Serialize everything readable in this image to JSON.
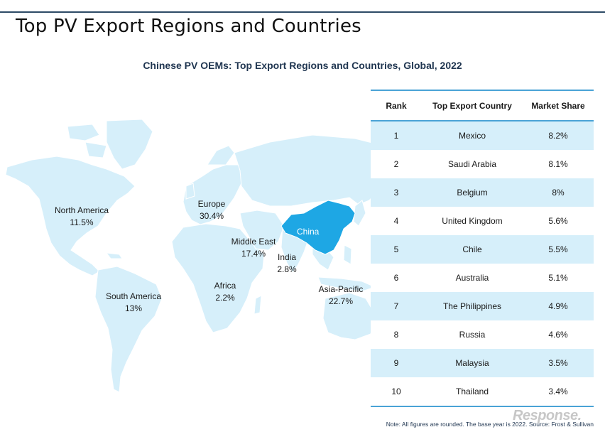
{
  "page_title": "Top PV Export Regions and Countries",
  "note": "Note: All figures are rounded. The base year is 2022. Source: Frost & Sullivan",
  "watermark": "Response.",
  "colors": {
    "land": "#d6effa",
    "highlight": "#1ea7e4",
    "rule": "#2d4a66",
    "table_accent": "#4aa3d6"
  },
  "chart_data": [
    {
      "type": "map",
      "title": "Chinese PV OEMs: Top Export Regions and Countries, Global, 2022",
      "highlighted_country": "China",
      "regions": [
        {
          "name": "North America",
          "value": "11.5%"
        },
        {
          "name": "Europe",
          "value": "30.4%"
        },
        {
          "name": "Middle East",
          "value": "17.4%"
        },
        {
          "name": "India",
          "value": "2.8%"
        },
        {
          "name": "South America",
          "value": "13%"
        },
        {
          "name": "Africa",
          "value": "2.2%"
        },
        {
          "name": "Asia-Pacific",
          "value": "22.7%"
        }
      ]
    },
    {
      "type": "table",
      "columns": [
        "Rank",
        "Top Export Country",
        "Market Share"
      ],
      "rows": [
        [
          "1",
          "Mexico",
          "8.2%"
        ],
        [
          "2",
          "Saudi Arabia",
          "8.1%"
        ],
        [
          "3",
          "Belgium",
          "8%"
        ],
        [
          "4",
          "United Kingdom",
          "5.6%"
        ],
        [
          "5",
          "Chile",
          "5.5%"
        ],
        [
          "6",
          "Australia",
          "5.1%"
        ],
        [
          "7",
          "The Philippines",
          "4.9%"
        ],
        [
          "8",
          "Russia",
          "4.6%"
        ],
        [
          "9",
          "Malaysia",
          "3.5%"
        ],
        [
          "10",
          "Thailand",
          "3.4%"
        ]
      ]
    }
  ]
}
